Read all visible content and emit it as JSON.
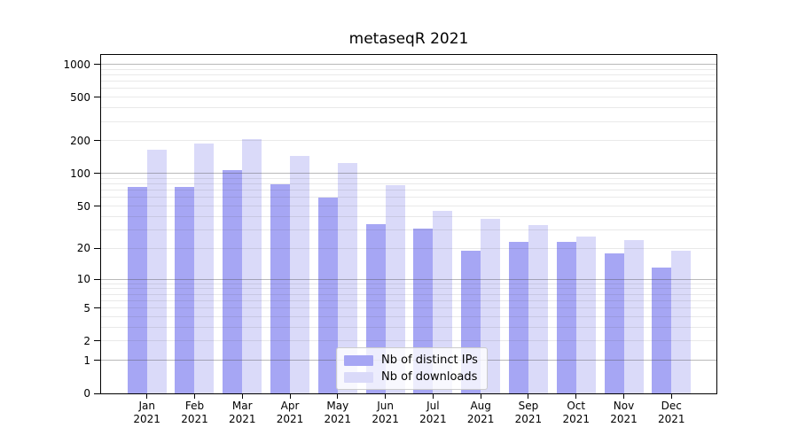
{
  "title": "metaseqR 2021",
  "chart_data": {
    "type": "bar",
    "title": "metaseqR 2021",
    "scale": "log(x+1)",
    "grid": "horizontal",
    "legend_position": "lower center inside",
    "categories": [
      "Jan",
      "Feb",
      "Mar",
      "Apr",
      "May",
      "Jun",
      "Jul",
      "Aug",
      "Sep",
      "Oct",
      "Nov",
      "Dec"
    ],
    "year": "2021",
    "yticks": [
      0,
      1,
      2,
      5,
      10,
      20,
      50,
      100,
      200,
      500,
      1000
    ],
    "ylim": [
      0,
      1250
    ],
    "xlabel": "",
    "ylabel": "",
    "series": [
      {
        "name": "Nb of distinct IPs",
        "color": "#a6a6f4",
        "values": [
          75,
          75,
          108,
          80,
          60,
          34,
          31,
          19,
          23,
          23,
          18,
          13
        ]
      },
      {
        "name": "Nb of downloads",
        "color": "#dadaf9",
        "values": [
          165,
          189,
          207,
          146,
          124,
          78,
          45,
          38,
          33,
          26,
          24,
          19
        ]
      }
    ]
  }
}
